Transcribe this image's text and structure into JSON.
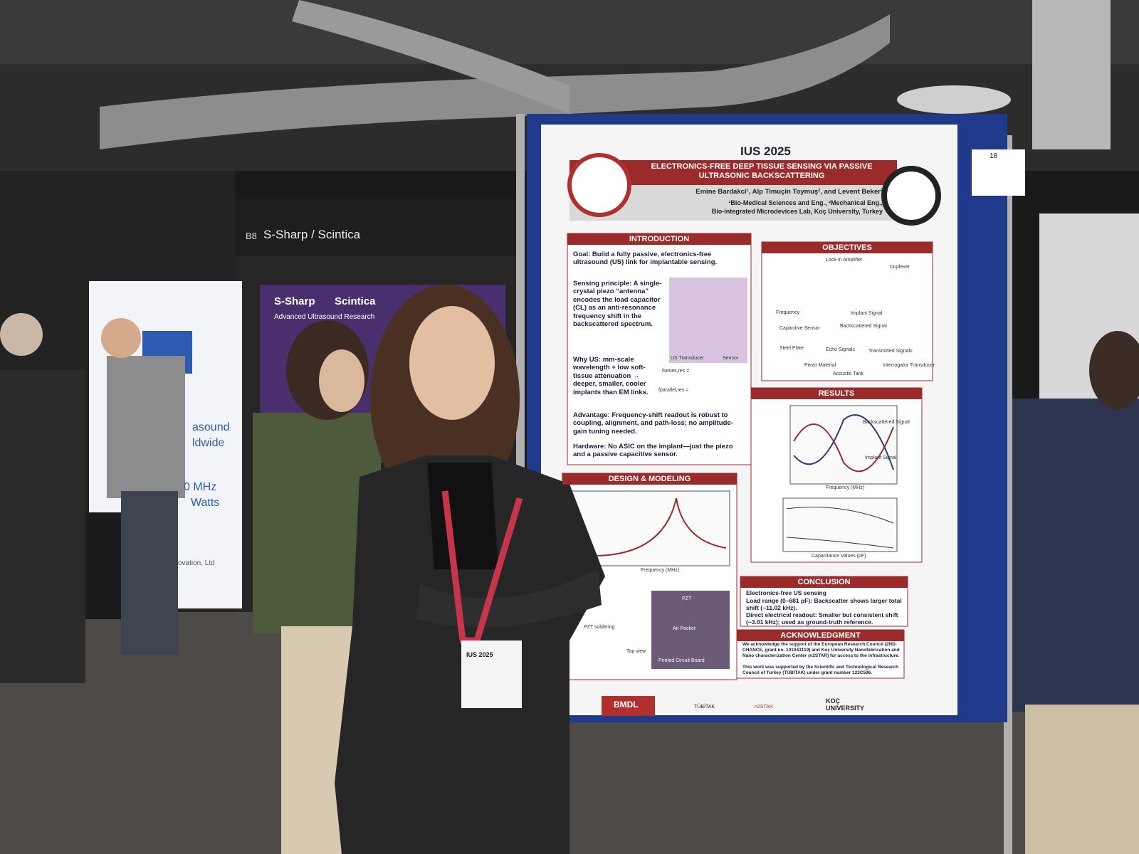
{
  "booth": {
    "number": "B8",
    "name": "S-Sharp / Scintica"
  },
  "banners": {
    "left_lines": [
      "asound",
      "ldwide",
      "0 MHz",
      "Watts"
    ],
    "left_footer": "ovation, Ltd",
    "center_brand": "S-Sharp",
    "center_brand2": "Scintica",
    "center_tagline": "Advanced Ultrasound Research"
  },
  "badge": {
    "text": "IUS 2025"
  },
  "poster": {
    "conference": "IUS 2025",
    "board_number": "18",
    "title": "ELECTRONICS-FREE DEEP TISSUE SENSING VIA PASSIVE ULTRASONIC BACKSCATTERING",
    "authors": "Emine Bardakci¹, Alp Timuçin Toymuş², and Levent Beker²",
    "affiliations": [
      "¹Bio-Medical Sciences and Eng., ²Mechanical Eng.,",
      "Bio-integrated Microdevices Lab, Koç University, Turkey"
    ],
    "introduction": {
      "heading": "INTRODUCTION",
      "bullets": [
        "Goal: Build a fully passive, electronics-free ultrasound (US) link for implantable sensing.",
        "Sensing principle: A single-crystal piezo “antenna” encodes the load capacitor (CL) as an anti-resonance frequency shift in the backscattered spectrum.",
        "Why US: mm-scale wavelength + low soft-tissue attenuation → deeper, smaller, cooler implants than EM links.",
        "Advantage: Frequency-shift readout is robust to coupling, alignment, and path-loss; no amplitude-gain tuning needed.",
        "Hardware: No ASIC on the implant—just the piezo and a passive capacitive sensor."
      ],
      "figure_labels": [
        "US Transducer",
        "Sensor"
      ],
      "formulas": [
        "fseries,res =",
        "fparallel,res ="
      ]
    },
    "objectives": {
      "heading": "OBJECTIVES",
      "labels": [
        "Lock-in Amplifier",
        "Duplexer",
        "Implant Signal",
        "Backscattered Signal",
        "Capacitive Sensor",
        "Steel Plate",
        "Echo Signals",
        "Transmitted Signals",
        "Piezo Material",
        "Interrogator Transducer",
        "Acoustic Tank",
        "Frequency"
      ]
    },
    "results": {
      "heading": "RESULTS",
      "labels": [
        "Backscattered Signal",
        "Implant Signal",
        "Frequency (MHz)",
        "Capacitance Values (pF)"
      ]
    },
    "design": {
      "heading": "DESIGN & MODELING",
      "labels": [
        "Frequency (MHz)",
        "PZT",
        "Air Pocket",
        "Printed Circuit Board",
        "PZT soldering",
        "Top view"
      ]
    },
    "conclusion": {
      "heading": "CONCLUSION",
      "bullets": [
        "Electronics-free US sensing",
        "Load range (0–681 pF): Backscatter shows larger total shift (~11.02 kHz).",
        "Direct electrical readout: Smaller but consistent shift (~3.01 kHz); used as ground-truth reference."
      ]
    },
    "acknowledgment": {
      "heading": "ACKNOWLEDGMENT",
      "bullets": [
        "We acknowledge the support of the European Research Council (2ND-CHANCE, grant no. 101043119) and Koç University Nanofabrication and Nano characterization Center (n2STAR) for access to the infrastructure.",
        "This work was supported by the Scientific and Technological Research Council of Turkey (TÜBİTAK) under grant number 123C596."
      ]
    },
    "logos": [
      "BMDL",
      "TÜBİTAK",
      "n2STAR",
      "KOÇ UNIVERSITY"
    ]
  }
}
